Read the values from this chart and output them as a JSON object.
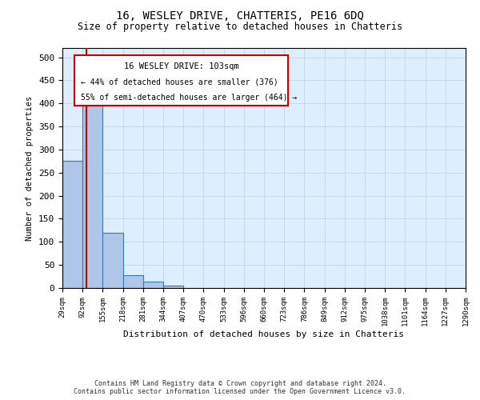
{
  "title": "16, WESLEY DRIVE, CHATTERIS, PE16 6DQ",
  "subtitle": "Size of property relative to detached houses in Chatteris",
  "xlabel": "Distribution of detached houses by size in Chatteris",
  "ylabel": "Number of detached properties",
  "footer_line1": "Contains HM Land Registry data © Crown copyright and database right 2024.",
  "footer_line2": "Contains public sector information licensed under the Open Government Licence v3.0.",
  "bin_labels": [
    "29sqm",
    "92sqm",
    "155sqm",
    "218sqm",
    "281sqm",
    "344sqm",
    "407sqm",
    "470sqm",
    "533sqm",
    "596sqm",
    "660sqm",
    "723sqm",
    "786sqm",
    "849sqm",
    "912sqm",
    "975sqm",
    "1038sqm",
    "1101sqm",
    "1164sqm",
    "1227sqm",
    "1290sqm"
  ],
  "bar_heights": [
    275,
    408,
    120,
    28,
    14,
    5,
    0,
    0,
    0,
    0,
    0,
    0,
    0,
    0,
    0,
    0,
    0,
    0,
    0,
    0
  ],
  "bar_color": "#aec6e8",
  "bar_edge_color": "#3a78b5",
  "ylim": [
    0,
    520
  ],
  "yticks": [
    0,
    50,
    100,
    150,
    200,
    250,
    300,
    350,
    400,
    450,
    500
  ],
  "annotation_text_line1": "16 WESLEY DRIVE: 103sqm",
  "annotation_text_line2": "← 44% of detached houses are smaller (376)",
  "annotation_text_line3": "55% of semi-detached houses are larger (464) →",
  "annotation_box_color": "#cc0000",
  "grid_color": "#c8d8e8",
  "background_color": "#ddeeff"
}
